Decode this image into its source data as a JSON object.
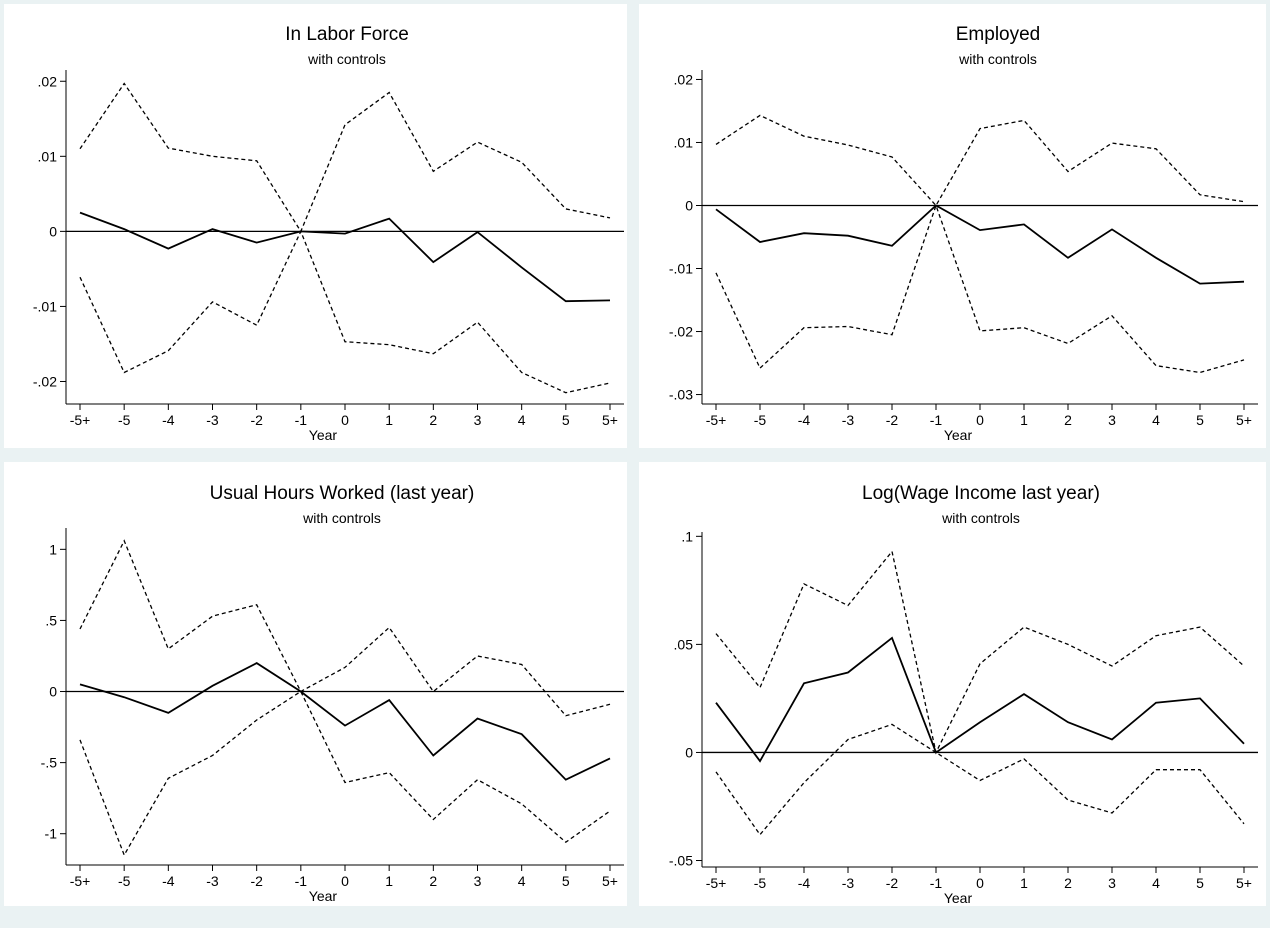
{
  "chart_data": [
    {
      "type": "line",
      "title": "In Labor Force",
      "subtitle": "with controls",
      "xlabel": "Year",
      "ylabel": "",
      "categories": [
        "-5+",
        "-5",
        "-4",
        "-3",
        "-2",
        "-1",
        "0",
        "1",
        "2",
        "3",
        "4",
        "5",
        "5+"
      ],
      "ylim": [
        -0.023,
        0.0215
      ],
      "yticks": [
        {
          "v": -0.02,
          "label": "-.02"
        },
        {
          "v": -0.01,
          "label": "-.01"
        },
        {
          "v": 0,
          "label": "0"
        },
        {
          "v": 0.01,
          "label": ".01"
        },
        {
          "v": 0.02,
          "label": ".02"
        }
      ],
      "reference_line": 0,
      "series": [
        {
          "style": "solid",
          "values": [
            0.0025,
            0.0003,
            -0.0023,
            0.0003,
            -0.0015,
            0,
            -0.0003,
            0.0017,
            -0.0041,
            -0.0001,
            -0.0048,
            -0.0093,
            -0.0092
          ]
        },
        {
          "style": "dashed",
          "values": [
            0.011,
            0.0197,
            0.0111,
            0.01,
            0.0094,
            0,
            0.0142,
            0.0185,
            0.008,
            0.0119,
            0.0092,
            0.003,
            0.0018
          ]
        },
        {
          "style": "dashed",
          "values": [
            -0.0061,
            -0.0188,
            -0.0159,
            -0.0094,
            -0.0125,
            0,
            -0.0147,
            -0.0151,
            -0.0163,
            -0.0121,
            -0.0188,
            -0.0215,
            -0.0202
          ]
        }
      ]
    },
    {
      "type": "line",
      "title": "Employed",
      "subtitle": "with controls",
      "xlabel": "Year",
      "ylabel": "",
      "categories": [
        "-5+",
        "-5",
        "-4",
        "-3",
        "-2",
        "-1",
        "0",
        "1",
        "2",
        "3",
        "4",
        "5",
        "5+"
      ],
      "ylim": [
        -0.0315,
        0.0215
      ],
      "yticks": [
        {
          "v": -0.03,
          "label": "-.03"
        },
        {
          "v": -0.02,
          "label": "-.02"
        },
        {
          "v": -0.01,
          "label": "-.01"
        },
        {
          "v": 0,
          "label": "0"
        },
        {
          "v": 0.01,
          "label": ".01"
        },
        {
          "v": 0.02,
          "label": ".02"
        }
      ],
      "reference_line": 0,
      "series": [
        {
          "style": "solid",
          "values": [
            -0.0006,
            -0.0058,
            -0.0044,
            -0.0048,
            -0.0064,
            0,
            -0.0039,
            -0.003,
            -0.0083,
            -0.0038,
            -0.0083,
            -0.0124,
            -0.0121
          ]
        },
        {
          "style": "dashed",
          "values": [
            0.0097,
            0.0143,
            0.011,
            0.0096,
            0.0077,
            0,
            0.0122,
            0.0135,
            0.0054,
            0.0099,
            0.009,
            0.0017,
            0.0006
          ]
        },
        {
          "style": "dashed",
          "values": [
            -0.0107,
            -0.0258,
            -0.0194,
            -0.0192,
            -0.0205,
            0,
            -0.0199,
            -0.0194,
            -0.0219,
            -0.0175,
            -0.0254,
            -0.0265,
            -0.0245
          ]
        }
      ]
    },
    {
      "type": "line",
      "title": "Usual Hours Worked (last year)",
      "subtitle": "with controls",
      "xlabel": "Year",
      "ylabel": "",
      "categories": [
        "-5+",
        "-5",
        "-4",
        "-3",
        "-2",
        "-1",
        "0",
        "1",
        "2",
        "3",
        "4",
        "5",
        "5+"
      ],
      "ylim": [
        -1.22,
        1.15
      ],
      "yticks": [
        {
          "v": -1,
          "label": "-1"
        },
        {
          "v": -0.5,
          "label": "-.5"
        },
        {
          "v": 0,
          "label": "0"
        },
        {
          "v": 0.5,
          "label": ".5"
        },
        {
          "v": 1,
          "label": "1"
        }
      ],
      "reference_line": 0,
      "series": [
        {
          "style": "solid",
          "values": [
            0.05,
            -0.04,
            -0.15,
            0.04,
            0.2,
            0,
            -0.24,
            -0.06,
            -0.45,
            -0.19,
            -0.3,
            -0.62,
            -0.47
          ]
        },
        {
          "style": "dashed",
          "values": [
            0.44,
            1.06,
            0.3,
            0.53,
            0.61,
            0,
            0.17,
            0.45,
            0.0,
            0.25,
            0.19,
            -0.17,
            -0.09
          ]
        },
        {
          "style": "dashed",
          "values": [
            -0.34,
            -1.15,
            -0.61,
            -0.45,
            -0.2,
            0,
            -0.64,
            -0.57,
            -0.9,
            -0.62,
            -0.79,
            -1.06,
            -0.84
          ]
        }
      ]
    },
    {
      "type": "line",
      "title": "Log(Wage Income last year)",
      "subtitle": "with controls",
      "xlabel": "Year",
      "ylabel": "",
      "categories": [
        "-5+",
        "-5",
        "-4",
        "-3",
        "-2",
        "-1",
        "0",
        "1",
        "2",
        "3",
        "4",
        "5",
        "5+"
      ],
      "ylim": [
        -0.053,
        0.102
      ],
      "yticks": [
        {
          "v": -0.05,
          "label": "-.05"
        },
        {
          "v": 0,
          "label": "0"
        },
        {
          "v": 0.05,
          "label": ".05"
        },
        {
          "v": 0.1,
          "label": ".1"
        }
      ],
      "reference_line": 0,
      "series": [
        {
          "style": "solid",
          "values": [
            0.023,
            -0.004,
            0.032,
            0.037,
            0.053,
            0,
            0.014,
            0.027,
            0.014,
            0.006,
            0.023,
            0.025,
            0.004
          ]
        },
        {
          "style": "dashed",
          "values": [
            0.055,
            0.03,
            0.078,
            0.068,
            0.093,
            0,
            0.041,
            0.058,
            0.05,
            0.04,
            0.054,
            0.058,
            0.04
          ]
        },
        {
          "style": "dashed",
          "values": [
            -0.009,
            -0.038,
            -0.014,
            0.006,
            0.013,
            0,
            -0.013,
            -0.003,
            -0.022,
            -0.028,
            -0.008,
            -0.008,
            -0.033
          ]
        }
      ]
    }
  ]
}
